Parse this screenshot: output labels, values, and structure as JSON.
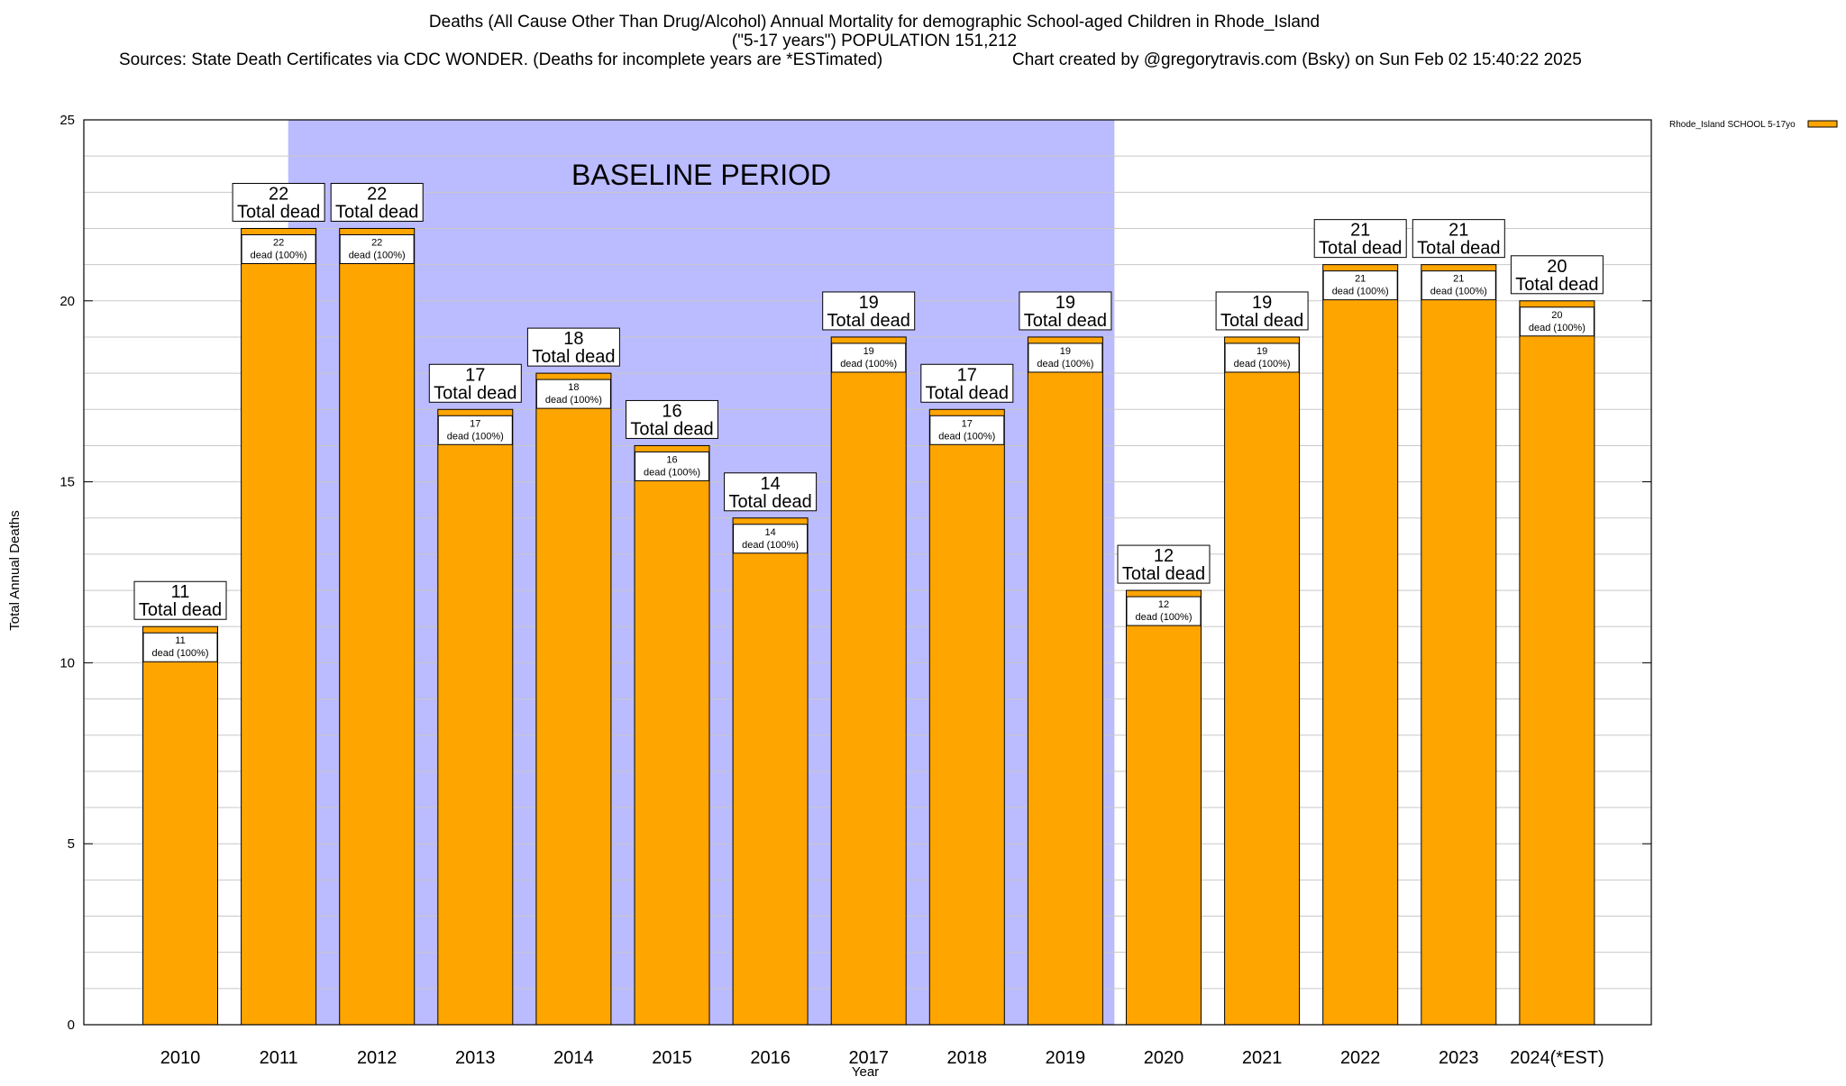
{
  "chart_data": {
    "type": "bar",
    "title": "Deaths (All Cause Other Than Drug/Alcohol) Annual Mortality for demographic School-aged Children in Rhode_Island",
    "subtitle": "(\"5-17 years\") POPULATION 151,212",
    "sources": "Sources: State Death Certificates via CDC WONDER. (Deaths for incomplete years are *ESTimated)",
    "credit": "Chart created by @gregorytravis.com (Bsky) on Sun Feb 02 15:40:22 2025",
    "xlabel": "Year",
    "ylabel": "Total Annual Deaths",
    "ylim": [
      0,
      25
    ],
    "yticks": [
      0,
      5,
      10,
      15,
      20,
      25
    ],
    "grid": true,
    "legend_position": "top-right",
    "categories": [
      "2010",
      "2011",
      "2012",
      "2013",
      "2014",
      "2015",
      "2016",
      "2017",
      "2018",
      "2019",
      "2020",
      "2021",
      "2022",
      "2023",
      "2024(*EST)"
    ],
    "series": [
      {
        "name": "Rhode_Island SCHOOL 5-17yo",
        "color": "#FFA500",
        "values": [
          11,
          22,
          22,
          17,
          18,
          16,
          14,
          19,
          17,
          19,
          12,
          19,
          21,
          21,
          20
        ]
      }
    ],
    "total_label_suffix": "Total dead",
    "inner_label_suffix": "dead (100%)",
    "baseline_period": {
      "label": "BASELINE PERIOD",
      "start": "2012",
      "end": "2019",
      "color": "#BBBBFF"
    }
  }
}
